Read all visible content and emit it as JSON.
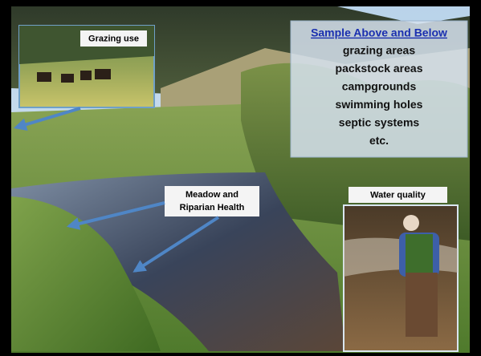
{
  "labels": {
    "grazing": "Grazing use",
    "meadow": [
      "Meadow and",
      "Riparian Health"
    ],
    "water": "Water quality"
  },
  "sample_box": {
    "heading": "Sample Above and Below",
    "items": [
      "grazing areas",
      "packstock areas",
      "campgrounds",
      "swimming holes",
      "septic systems",
      "etc."
    ]
  }
}
